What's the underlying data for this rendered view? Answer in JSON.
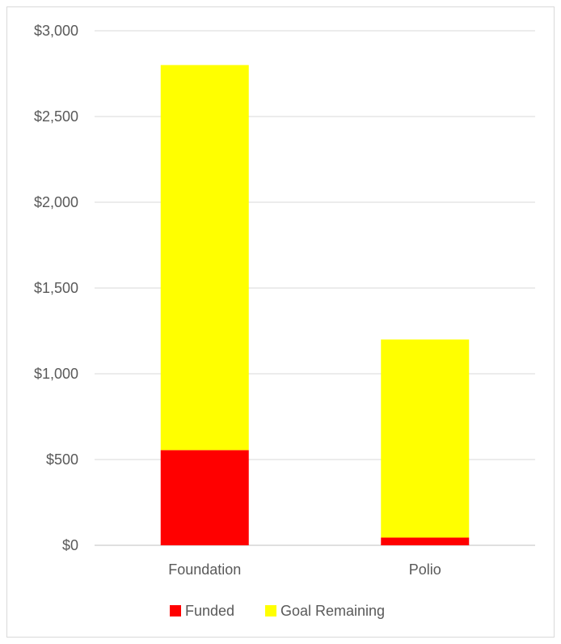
{
  "chart_data": {
    "type": "bar",
    "stacked": true,
    "categories": [
      "Foundation",
      "Polio"
    ],
    "series": [
      {
        "name": "Funded",
        "values": [
          555,
          45
        ],
        "color": "#ff0000"
      },
      {
        "name": "Goal Remaining",
        "values": [
          2245,
          1155
        ],
        "color": "#ffff00"
      }
    ],
    "ylim": [
      0,
      3000
    ],
    "yticks": [
      0,
      500,
      1000,
      1500,
      2000,
      2500,
      3000
    ],
    "ytick_labels": [
      "$0",
      "$500",
      "$1,000",
      "$1,500",
      "$2,000",
      "$2,500",
      "$3,000"
    ],
    "grid": true,
    "legend_position": "bottom",
    "title": "",
    "xlabel": "",
    "ylabel": ""
  }
}
